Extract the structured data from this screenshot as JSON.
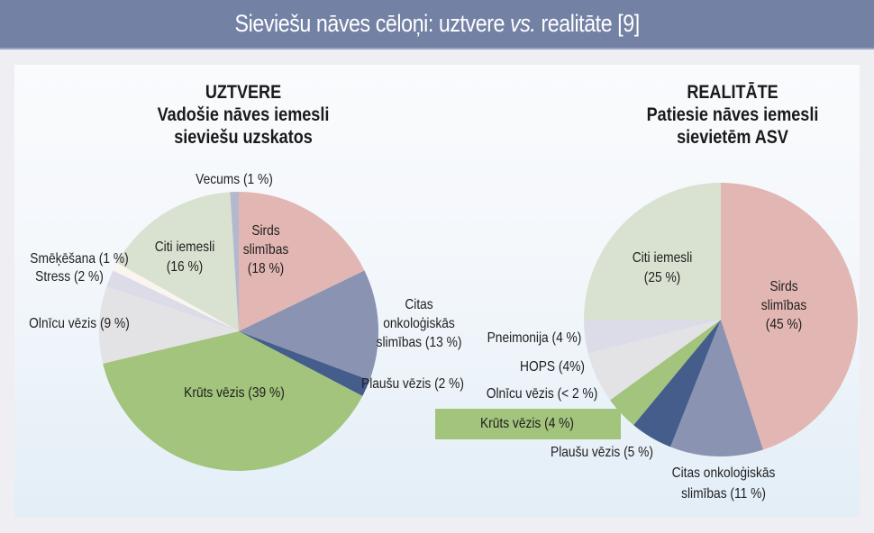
{
  "header": {
    "title_part1": "Sieviešu nāves cēloņi: uztvere ",
    "title_italic": "vs.",
    "title_part2": " realitāte [9]"
  },
  "left_chart": {
    "title": "UZTVERE",
    "subtitle_line1": "Vadošie nāves iemesli",
    "subtitle_line2": "sieviešu uzskatos"
  },
  "right_chart": {
    "title": "REALITĀTE",
    "subtitle_line1": "Patiesie nāves iemesli",
    "subtitle_line2": "sievietēm ASV"
  },
  "labels_left": {
    "vecums": "Vecums (1 %)",
    "sirds_1": "Sirds",
    "sirds_2": "slimības",
    "sirds_3": "(18 %)",
    "citi_1": "Citi iemesli",
    "citi_2": "(16 %)",
    "smekesana": "Smēķēšana (1 %)",
    "stress": "Stress (2 %)",
    "olnicu": "Olnīcu vēzis (9 %)",
    "onko_1": "Citas",
    "onko_2": "onkoloģiskās",
    "onko_3": "slimības (13 %)",
    "plausu": "Plaušu vēzis (2 %)",
    "kruts": "Krūts vēzis (39 %)"
  },
  "labels_right": {
    "citi_1": "Citi iemesli",
    "citi_2": "(25 %)",
    "sirds_1": "Sirds",
    "sirds_2": "slimības",
    "sirds_3": "(45 %)",
    "pneimonija": "Pneimonija (4 %)",
    "hops": "HOPS (4%)",
    "olnicu": "Olnīcu vēzis (< 2 %)",
    "kruts": "Krūts vēzis (4 %)",
    "plausu": "Plaušu vēzis (5 %)",
    "onko_1": "Citas onkoloģiskās",
    "onko_2": "slimības (11 %)"
  },
  "colors": {
    "header": "#7381a5",
    "sirds": "#e2b7b3",
    "onko": "#8a93b2",
    "plausu": "#455d8a",
    "kruts": "#a2c47c",
    "olnicu": "#e3e3e6",
    "stress": "#dcdce8",
    "smekesana": "#faf5ee",
    "citi": "#d9e2d0",
    "vecums": "#b3b8cf",
    "pneimonija": "#dcdce8",
    "hops": "#e3e3e6",
    "other_gap": "#ebf4f5"
  },
  "chart_data": [
    {
      "type": "pie",
      "title": "UZTVERE — Vadošie nāves iemesli sieviešu uzskatos",
      "categories": [
        "Sirds slimības",
        "Citas onkoloģiskās slimības",
        "Plaušu vēzis",
        "Krūts vēzis",
        "Olnīcu vēzis",
        "Stress",
        "Smēķēšana",
        "Citi iemesli",
        "Vecums"
      ],
      "values": [
        18,
        13,
        2,
        39,
        9,
        2,
        1,
        16,
        1
      ],
      "unit": "%",
      "start": "12 o'clock, clockwise"
    },
    {
      "type": "pie",
      "title": "REALITĀTE — Patiesie nāves iemesli sievietēm ASV",
      "categories": [
        "Sirds slimības",
        "Citas onkoloģiskās slimības",
        "Plaušu vēzis",
        "Krūts vēzis",
        "Olnīcu vēzis",
        "HOPS",
        "Pneimonija",
        "Citi iemesli"
      ],
      "values": [
        45,
        11,
        5,
        4,
        2,
        4,
        4,
        25
      ],
      "value_notes": {
        "Olnīcu vēzis": "< 2"
      },
      "unit": "%",
      "start": "12 o'clock, clockwise"
    }
  ]
}
